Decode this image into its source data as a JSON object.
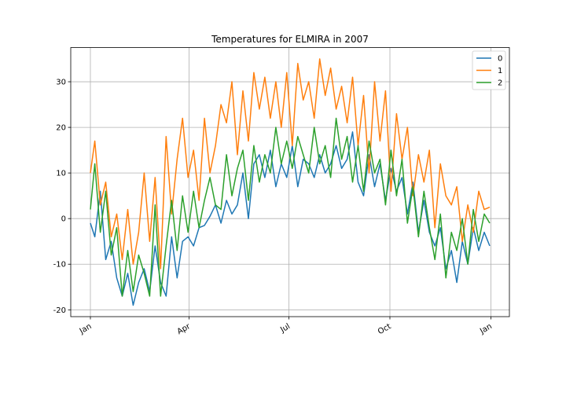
{
  "chart_data": {
    "type": "line",
    "title": "Temperatures for ELMIRA in 2007",
    "xlabel": "",
    "ylabel": "",
    "x_start": "2007-01-01",
    "x_end": "2007-12-31",
    "x_ticks": [
      {
        "date": "2007-01-01",
        "label": "Jan"
      },
      {
        "date": "2007-04-01",
        "label": "Apr"
      },
      {
        "date": "2007-07-01",
        "label": "Jul"
      },
      {
        "date": "2007-10-01",
        "label": "Oct"
      },
      {
        "date": "2008-01-01",
        "label": "Jan"
      }
    ],
    "y_ticks": [
      -20,
      -10,
      0,
      10,
      20,
      30
    ],
    "ylim": [
      -21.5,
      37.5
    ],
    "grid": true,
    "legend_position": "top-right",
    "series": [
      {
        "name": "0",
        "color": "#1f77b4",
        "x": [
          "2007-01-01",
          "2007-01-05",
          "2007-01-10",
          "2007-01-15",
          "2007-01-20",
          "2007-01-25",
          "2007-01-30",
          "2007-02-04",
          "2007-02-09",
          "2007-02-14",
          "2007-02-19",
          "2007-02-24",
          "2007-03-01",
          "2007-03-06",
          "2007-03-11",
          "2007-03-16",
          "2007-03-21",
          "2007-03-26",
          "2007-03-31",
          "2007-04-05",
          "2007-04-10",
          "2007-04-15",
          "2007-04-20",
          "2007-04-25",
          "2007-04-30",
          "2007-05-05",
          "2007-05-10",
          "2007-05-15",
          "2007-05-20",
          "2007-05-25",
          "2007-05-30",
          "2007-06-04",
          "2007-06-09",
          "2007-06-14",
          "2007-06-19",
          "2007-06-24",
          "2007-06-29",
          "2007-07-04",
          "2007-07-09",
          "2007-07-14",
          "2007-07-19",
          "2007-07-24",
          "2007-07-29",
          "2007-08-03",
          "2007-08-08",
          "2007-08-13",
          "2007-08-18",
          "2007-08-23",
          "2007-08-28",
          "2007-09-02",
          "2007-09-07",
          "2007-09-12",
          "2007-09-17",
          "2007-09-22",
          "2007-09-27",
          "2007-10-02",
          "2007-10-07",
          "2007-10-12",
          "2007-10-17",
          "2007-10-22",
          "2007-10-27",
          "2007-11-01",
          "2007-11-06",
          "2007-11-11",
          "2007-11-16",
          "2007-11-21",
          "2007-11-26",
          "2007-12-01",
          "2007-12-06",
          "2007-12-11",
          "2007-12-16",
          "2007-12-21",
          "2007-12-26",
          "2007-12-31"
        ],
        "y": [
          -1.0,
          -4.0,
          6.0,
          -9.0,
          -5.0,
          -13.0,
          -17.0,
          -12.0,
          -19.0,
          -14.0,
          -11.0,
          -16.0,
          -6.0,
          -14.0,
          -17.0,
          -4.0,
          -13.0,
          -5.0,
          -4.0,
          -6.0,
          -2.0,
          -1.5,
          0.5,
          3.0,
          -1.0,
          4.0,
          1.0,
          3.0,
          10.0,
          0.0,
          12.0,
          14.0,
          9.0,
          15.0,
          7.0,
          12.0,
          9.0,
          16.0,
          7.0,
          13.0,
          12.0,
          9.0,
          14.0,
          10.0,
          12.0,
          16.0,
          11.0,
          13.0,
          19.0,
          8.0,
          5.0,
          14.0,
          7.0,
          12.0,
          4.0,
          11.0,
          6.0,
          9.0,
          1.0,
          8.0,
          -3.0,
          4.0,
          -3.0,
          -6.0,
          -2.0,
          -11.0,
          -7.0,
          -14.0,
          -5.0,
          -10.0,
          -2.0,
          -7.0,
          -3.0,
          -6.0
        ]
      },
      {
        "name": "1",
        "color": "#ff7f0e",
        "x": [
          "2007-01-01",
          "2007-01-05",
          "2007-01-10",
          "2007-01-15",
          "2007-01-20",
          "2007-01-25",
          "2007-01-30",
          "2007-02-04",
          "2007-02-09",
          "2007-02-14",
          "2007-02-19",
          "2007-02-24",
          "2007-03-01",
          "2007-03-06",
          "2007-03-11",
          "2007-03-16",
          "2007-03-21",
          "2007-03-26",
          "2007-03-31",
          "2007-04-05",
          "2007-04-10",
          "2007-04-15",
          "2007-04-20",
          "2007-04-25",
          "2007-04-30",
          "2007-05-05",
          "2007-05-10",
          "2007-05-15",
          "2007-05-20",
          "2007-05-25",
          "2007-05-30",
          "2007-06-04",
          "2007-06-09",
          "2007-06-14",
          "2007-06-19",
          "2007-06-24",
          "2007-06-29",
          "2007-07-04",
          "2007-07-09",
          "2007-07-14",
          "2007-07-19",
          "2007-07-24",
          "2007-07-29",
          "2007-08-03",
          "2007-08-08",
          "2007-08-13",
          "2007-08-18",
          "2007-08-23",
          "2007-08-28",
          "2007-09-02",
          "2007-09-07",
          "2007-09-12",
          "2007-09-17",
          "2007-09-22",
          "2007-09-27",
          "2007-10-02",
          "2007-10-07",
          "2007-10-12",
          "2007-10-17",
          "2007-10-22",
          "2007-10-27",
          "2007-11-01",
          "2007-11-06",
          "2007-11-11",
          "2007-11-16",
          "2007-11-21",
          "2007-11-26",
          "2007-12-01",
          "2007-12-06",
          "2007-12-11",
          "2007-12-16",
          "2007-12-21",
          "2007-12-26",
          "2007-12-31"
        ],
        "y": [
          10.0,
          17.0,
          3.0,
          8.0,
          -4.0,
          1.0,
          -9.0,
          2.0,
          -10.0,
          -3.0,
          10.0,
          -5.0,
          9.0,
          -11.0,
          18.0,
          1.0,
          13.0,
          22.0,
          9.0,
          15.0,
          4.0,
          22.0,
          10.0,
          16.0,
          25.0,
          21.0,
          30.0,
          14.0,
          28.0,
          17.0,
          32.0,
          24.0,
          31.0,
          22.0,
          30.0,
          20.0,
          32.0,
          16.0,
          34.0,
          26.0,
          30.0,
          22.0,
          35.0,
          27.0,
          33.0,
          24.0,
          29.0,
          21.0,
          31.0,
          16.0,
          27.0,
          10.0,
          30.0,
          17.0,
          28.0,
          6.0,
          23.0,
          13.0,
          20.0,
          5.0,
          14.0,
          8.0,
          15.0,
          -2.0,
          12.0,
          5.0,
          3.0,
          7.0,
          -5.0,
          3.0,
          -3.0,
          6.0,
          2.0,
          2.5
        ]
      },
      {
        "name": "2",
        "color": "#2ca02c",
        "x": [
          "2007-01-01",
          "2007-01-05",
          "2007-01-10",
          "2007-01-15",
          "2007-01-20",
          "2007-01-25",
          "2007-01-30",
          "2007-02-04",
          "2007-02-09",
          "2007-02-14",
          "2007-02-19",
          "2007-02-24",
          "2007-03-01",
          "2007-03-06",
          "2007-03-11",
          "2007-03-16",
          "2007-03-21",
          "2007-03-26",
          "2007-03-31",
          "2007-04-05",
          "2007-04-10",
          "2007-04-15",
          "2007-04-20",
          "2007-04-25",
          "2007-04-30",
          "2007-05-05",
          "2007-05-10",
          "2007-05-15",
          "2007-05-20",
          "2007-05-25",
          "2007-05-30",
          "2007-06-04",
          "2007-06-09",
          "2007-06-14",
          "2007-06-19",
          "2007-06-24",
          "2007-06-29",
          "2007-07-04",
          "2007-07-09",
          "2007-07-14",
          "2007-07-19",
          "2007-07-24",
          "2007-07-29",
          "2007-08-03",
          "2007-08-08",
          "2007-08-13",
          "2007-08-18",
          "2007-08-23",
          "2007-08-28",
          "2007-09-02",
          "2007-09-07",
          "2007-09-12",
          "2007-09-17",
          "2007-09-22",
          "2007-09-27",
          "2007-10-02",
          "2007-10-07",
          "2007-10-12",
          "2007-10-17",
          "2007-10-22",
          "2007-10-27",
          "2007-11-01",
          "2007-11-06",
          "2007-11-11",
          "2007-11-16",
          "2007-11-21",
          "2007-11-26",
          "2007-12-01",
          "2007-12-06",
          "2007-12-11",
          "2007-12-16",
          "2007-12-21",
          "2007-12-26",
          "2007-12-31"
        ],
        "y": [
          2.0,
          12.0,
          -3.0,
          6.0,
          -8.0,
          -2.0,
          -17.0,
          -7.0,
          -16.0,
          -8.0,
          -12.0,
          -17.0,
          3.0,
          -17.0,
          -6.0,
          4.0,
          -7.0,
          5.0,
          -3.0,
          6.0,
          -2.0,
          4.0,
          9.0,
          3.0,
          2.0,
          14.0,
          5.0,
          11.0,
          15.0,
          4.0,
          16.0,
          8.0,
          14.0,
          10.0,
          20.0,
          12.0,
          17.0,
          11.0,
          18.0,
          14.0,
          10.0,
          20.0,
          12.0,
          16.0,
          9.0,
          22.0,
          13.0,
          18.0,
          8.0,
          16.0,
          6.0,
          17.0,
          10.0,
          13.0,
          3.0,
          15.0,
          5.0,
          13.0,
          -1.0,
          7.0,
          -4.0,
          6.0,
          -2.0,
          -9.0,
          1.0,
          -13.0,
          -3.0,
          -7.0,
          0.0,
          -10.0,
          2.0,
          -5.0,
          1.0,
          -1.0
        ]
      }
    ]
  }
}
